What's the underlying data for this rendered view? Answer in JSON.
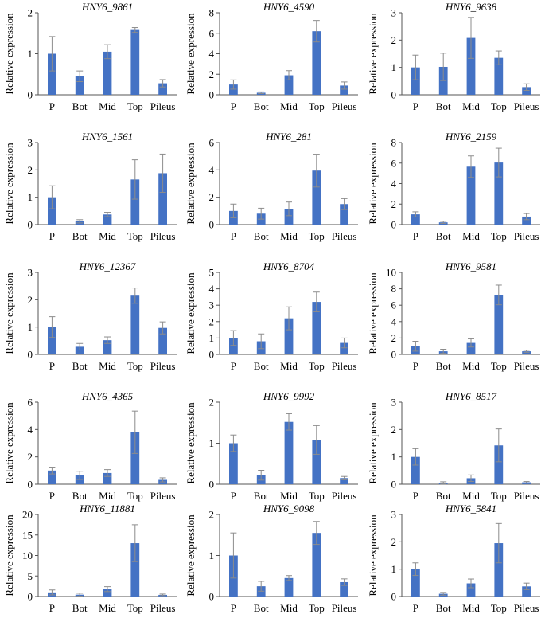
{
  "figure": {
    "ylabel": "Relative expression",
    "bar_color": "#4472C4",
    "error_color": "#8c8c8c"
  },
  "chart_data": [
    {
      "type": "bar",
      "title": "HNY6_9861",
      "categories": [
        "P",
        "Bot",
        "Mid",
        "Top",
        "Pileus"
      ],
      "values": [
        1.0,
        0.45,
        1.05,
        1.58,
        0.28
      ],
      "errors": [
        0.42,
        0.13,
        0.17,
        0.06,
        0.09
      ],
      "ylim": [
        0,
        2
      ],
      "yticks": [
        0,
        1,
        2
      ],
      "ylabel": "Relative expression",
      "xlabel": ""
    },
    {
      "type": "bar",
      "title": "HNY6_4590",
      "categories": [
        "P",
        "Bot",
        "Mid",
        "Top",
        "Pileus"
      ],
      "values": [
        1.0,
        0.2,
        1.9,
        6.2,
        0.9
      ],
      "errors": [
        0.45,
        0.08,
        0.45,
        1.05,
        0.35
      ],
      "ylim": [
        0,
        8
      ],
      "yticks": [
        0,
        2,
        4,
        6,
        8
      ],
      "ylabel": "Relative expression",
      "xlabel": ""
    },
    {
      "type": "bar",
      "title": "HNY6_9638",
      "categories": [
        "P",
        "Bot",
        "Mid",
        "Top",
        "Pileus"
      ],
      "values": [
        1.0,
        1.02,
        2.08,
        1.35,
        0.28
      ],
      "errors": [
        0.45,
        0.5,
        0.75,
        0.25,
        0.12
      ],
      "ylim": [
        0,
        3
      ],
      "yticks": [
        0,
        1,
        2,
        3
      ],
      "ylabel": "Relative expression",
      "xlabel": ""
    },
    {
      "type": "bar",
      "title": "HNY6_1561",
      "categories": [
        "P",
        "Bot",
        "Mid",
        "Top",
        "Pileus"
      ],
      "values": [
        1.0,
        0.12,
        0.37,
        1.65,
        1.88
      ],
      "errors": [
        0.42,
        0.06,
        0.08,
        0.72,
        0.7
      ],
      "ylim": [
        0,
        3
      ],
      "yticks": [
        0,
        1,
        2,
        3
      ],
      "ylabel": "Relative expression",
      "xlabel": ""
    },
    {
      "type": "bar",
      "title": "HNY6_281",
      "categories": [
        "P",
        "Bot",
        "Mid",
        "Top",
        "Pileus"
      ],
      "values": [
        1.0,
        0.8,
        1.15,
        3.95,
        1.5
      ],
      "errors": [
        0.5,
        0.4,
        0.5,
        1.2,
        0.4
      ],
      "ylim": [
        0,
        6
      ],
      "yticks": [
        0,
        2,
        4,
        6
      ],
      "ylabel": "Relative expression",
      "xlabel": ""
    },
    {
      "type": "bar",
      "title": "HNY6_2159",
      "categories": [
        "P",
        "Bot",
        "Mid",
        "Top",
        "Pileus"
      ],
      "values": [
        1.0,
        0.22,
        5.65,
        6.05,
        0.78
      ],
      "errors": [
        0.25,
        0.1,
        1.05,
        1.4,
        0.3
      ],
      "ylim": [
        0,
        8
      ],
      "yticks": [
        0,
        2,
        4,
        6,
        8
      ],
      "ylabel": "Relative expression",
      "xlabel": ""
    },
    {
      "type": "bar",
      "title": "HNY6_12367",
      "categories": [
        "P",
        "Bot",
        "Mid",
        "Top",
        "Pileus"
      ],
      "values": [
        1.0,
        0.28,
        0.52,
        2.15,
        0.97
      ],
      "errors": [
        0.38,
        0.12,
        0.12,
        0.28,
        0.22
      ],
      "ylim": [
        0,
        3
      ],
      "yticks": [
        0,
        1,
        2,
        3
      ],
      "ylabel": "Relative expression",
      "xlabel": ""
    },
    {
      "type": "bar",
      "title": "HNY6_8704",
      "categories": [
        "P",
        "Bot",
        "Mid",
        "Top",
        "Pileus"
      ],
      "values": [
        1.0,
        0.8,
        2.2,
        3.2,
        0.7
      ],
      "errors": [
        0.45,
        0.45,
        0.7,
        0.6,
        0.3
      ],
      "ylim": [
        0,
        5
      ],
      "yticks": [
        0,
        1,
        2,
        3,
        4,
        5
      ],
      "ylabel": "Relative expression",
      "xlabel": ""
    },
    {
      "type": "bar",
      "title": "HNY6_9581",
      "categories": [
        "P",
        "Bot",
        "Mid",
        "Top",
        "Pileus"
      ],
      "values": [
        1.0,
        0.38,
        1.4,
        7.25,
        0.38
      ],
      "errors": [
        0.6,
        0.25,
        0.5,
        1.2,
        0.12
      ],
      "ylim": [
        0,
        10
      ],
      "yticks": [
        0,
        2,
        4,
        6,
        8,
        10
      ],
      "ylabel": "Relative expression",
      "xlabel": ""
    },
    {
      "type": "bar",
      "title": "HNY6_4365",
      "categories": [
        "P",
        "Bot",
        "Mid",
        "Top",
        "Pileus"
      ],
      "values": [
        1.0,
        0.65,
        0.82,
        3.8,
        0.32
      ],
      "errors": [
        0.25,
        0.3,
        0.25,
        1.55,
        0.15
      ],
      "ylim": [
        0,
        6
      ],
      "yticks": [
        0,
        2,
        4,
        6
      ],
      "ylabel": "Relative expression",
      "xlabel": ""
    },
    {
      "type": "bar",
      "title": "HNY6_9992",
      "categories": [
        "P",
        "Bot",
        "Mid",
        "Top",
        "Pileus"
      ],
      "values": [
        1.0,
        0.22,
        1.52,
        1.08,
        0.15
      ],
      "errors": [
        0.2,
        0.12,
        0.2,
        0.35,
        0.04
      ],
      "ylim": [
        0,
        2
      ],
      "yticks": [
        0,
        1,
        2
      ],
      "ylabel": "Relative expression",
      "xlabel": ""
    },
    {
      "type": "bar",
      "title": "HNY6_8517",
      "categories": [
        "P",
        "Bot",
        "Mid",
        "Top",
        "Pileus"
      ],
      "values": [
        1.0,
        0.05,
        0.22,
        1.42,
        0.07
      ],
      "errors": [
        0.3,
        0.04,
        0.12,
        0.6,
        0.03
      ],
      "ylim": [
        0,
        3
      ],
      "yticks": [
        0,
        1,
        2,
        3
      ],
      "ylabel": "Relative expression",
      "xlabel": ""
    },
    {
      "type": "bar",
      "title": "HNY6_11881",
      "categories": [
        "P",
        "Bot",
        "Mid",
        "Top",
        "Pileus"
      ],
      "values": [
        1.0,
        0.45,
        1.8,
        13.0,
        0.4
      ],
      "errors": [
        0.6,
        0.35,
        0.6,
        4.5,
        0.2
      ],
      "ylim": [
        0,
        20
      ],
      "yticks": [
        0,
        5,
        10,
        15,
        20
      ],
      "ylabel": "Relative expression",
      "xlabel": ""
    },
    {
      "type": "bar",
      "title": "HNY6_9098",
      "categories": [
        "P",
        "Bot",
        "Mid",
        "Top",
        "Pileus"
      ],
      "values": [
        1.0,
        0.25,
        0.45,
        1.55,
        0.35
      ],
      "errors": [
        0.55,
        0.12,
        0.06,
        0.28,
        0.08
      ],
      "ylim": [
        0,
        2
      ],
      "yticks": [
        0,
        1,
        2
      ],
      "ylabel": "Relative expression",
      "xlabel": ""
    },
    {
      "type": "bar",
      "title": "HNY6_5841",
      "categories": [
        "P",
        "Bot",
        "Mid",
        "Top",
        "Pileus"
      ],
      "values": [
        1.0,
        0.1,
        0.48,
        1.95,
        0.37
      ],
      "errors": [
        0.23,
        0.05,
        0.16,
        0.72,
        0.12
      ],
      "ylim": [
        0,
        3
      ],
      "yticks": [
        0,
        1,
        2,
        3
      ],
      "ylabel": "Relative expression",
      "xlabel": ""
    }
  ]
}
